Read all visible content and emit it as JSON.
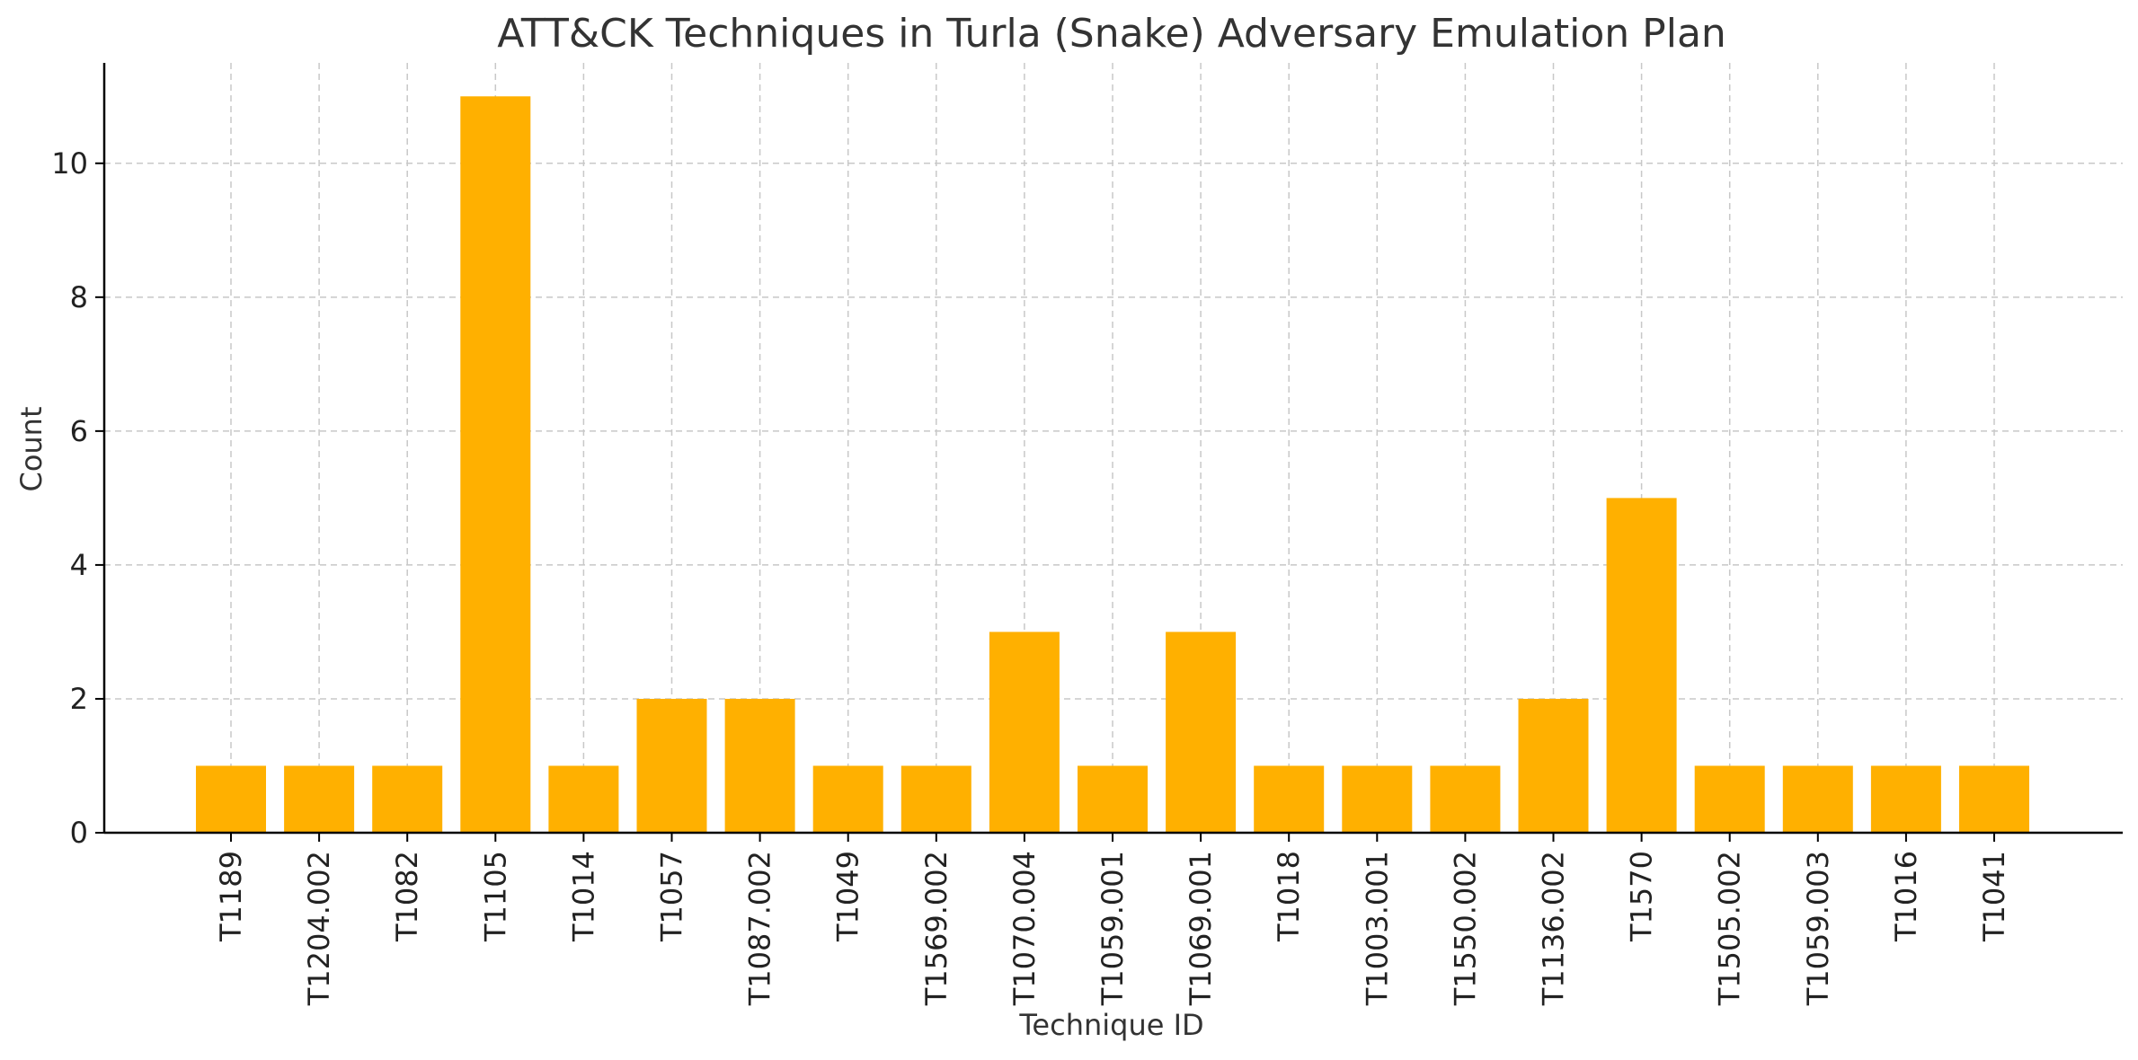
{
  "chart_data": {
    "type": "bar",
    "title": "ATT&CK Techniques in Turla (Snake) Adversary Emulation Plan",
    "xlabel": "Technique ID",
    "ylabel": "Count",
    "categories": [
      "T1189",
      "T1204.002",
      "T1082",
      "T1105",
      "T1014",
      "T1057",
      "T1087.002",
      "T1049",
      "T1569.002",
      "T1070.004",
      "T1059.001",
      "T1069.001",
      "T1018",
      "T1003.001",
      "T1550.002",
      "T1136.002",
      "T1570",
      "T1505.002",
      "T1059.003",
      "T1016",
      "T1041"
    ],
    "values": [
      1,
      1,
      1,
      11,
      1,
      2,
      2,
      1,
      1,
      3,
      1,
      3,
      1,
      1,
      1,
      2,
      5,
      1,
      1,
      1,
      1
    ],
    "ylim": [
      0,
      11.5
    ],
    "yticks": [
      0,
      2,
      4,
      6,
      8,
      10
    ],
    "grid": true,
    "bar_color": "#FFB000"
  }
}
